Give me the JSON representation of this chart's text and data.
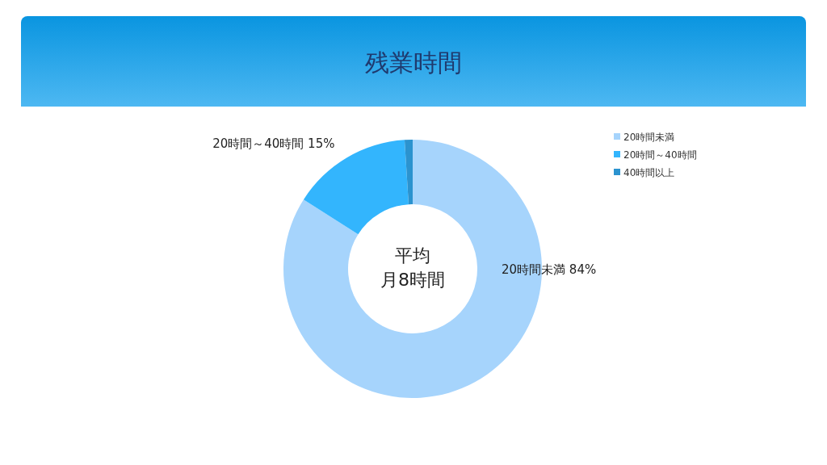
{
  "chart_data": {
    "type": "donut",
    "title": "残業時間",
    "categories": [
      "20時間未満",
      "20時間～40時間",
      "40時間以上"
    ],
    "values": [
      84,
      15,
      1
    ],
    "colors": [
      "#a6d4fc",
      "#33b5fd",
      "#2b93cf"
    ],
    "value_labels": [
      "20時間未満 84%",
      "20時間～40時間 15%",
      null
    ],
    "annotations": [
      "平均",
      "月8時間"
    ],
    "legend": "top right"
  }
}
